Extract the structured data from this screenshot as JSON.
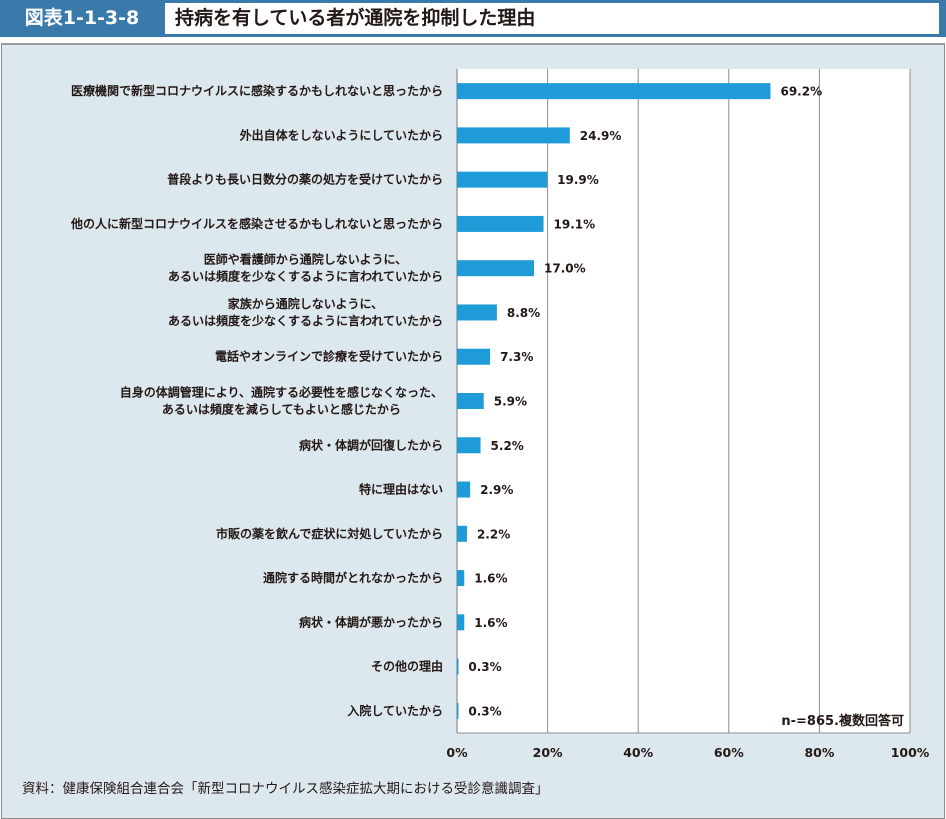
{
  "header": {
    "figure_number": "図表1-1-3-8",
    "title": "持病を有している者が通院を抑制した理由"
  },
  "colors": {
    "header_blue": "#3a7aab",
    "panel_bg": "#dde7ee",
    "bar": "#1f9bd7",
    "grid": "#8c8c8c"
  },
  "chart_data": {
    "type": "bar",
    "orientation": "horizontal",
    "title": "持病を有している者が通院を抑制した理由",
    "categories": [
      [
        "医療機関で新型コロナウイルスに感染するかもしれないと思ったから"
      ],
      [
        "外出自体をしないようにしていたから"
      ],
      [
        "普段よりも長い日数分の薬の処方を受けていたから"
      ],
      [
        "他の人に新型コロナウイルスを感染させるかもしれないと思ったから"
      ],
      [
        "医師や看護師から通院しないように、",
        "あるいは頻度を少なくするように言われていたから"
      ],
      [
        "家族から通院しないように、",
        "あるいは頻度を少なくするように言われていたから"
      ],
      [
        "電話やオンラインで診療を受けていたから"
      ],
      [
        "自身の体調管理により、通院する必要性を感じなくなった、",
        "あるいは頻度を減らしてもよいと感じたから"
      ],
      [
        "病状・体調が回復したから"
      ],
      [
        "特に理由はない"
      ],
      [
        "市販の薬を飲んで症状に対処していたから"
      ],
      [
        "通院する時間がとれなかったから"
      ],
      [
        "病状・体調が悪かったから"
      ],
      [
        "その他の理由"
      ],
      [
        "入院していたから"
      ]
    ],
    "values": [
      69.2,
      24.9,
      19.9,
      19.1,
      17.0,
      8.8,
      7.3,
      5.9,
      5.2,
      2.9,
      2.2,
      1.6,
      1.6,
      0.3,
      0.3
    ],
    "value_labels": [
      "69.2%",
      "24.9%",
      "19.9%",
      "19.1%",
      "17.0%",
      "8.8%",
      "7.3%",
      "5.9%",
      "5.2%",
      "2.9%",
      "2.2%",
      "1.6%",
      "1.6%",
      "0.3%",
      "0.3%"
    ],
    "xlim": [
      0,
      100
    ],
    "xticks": [
      0,
      20,
      40,
      60,
      80,
      100
    ],
    "xtick_labels": [
      "0%",
      "20%",
      "40%",
      "60%",
      "80%",
      "100%"
    ],
    "xlabel": "",
    "ylabel": "",
    "grid": true,
    "legend": "none",
    "annotation": "n-=865.複数回答可"
  },
  "footer": {
    "source": "資料：健康保険組合連合会「新型コロナウイルス感染症拡大期における受診意識調査」"
  }
}
